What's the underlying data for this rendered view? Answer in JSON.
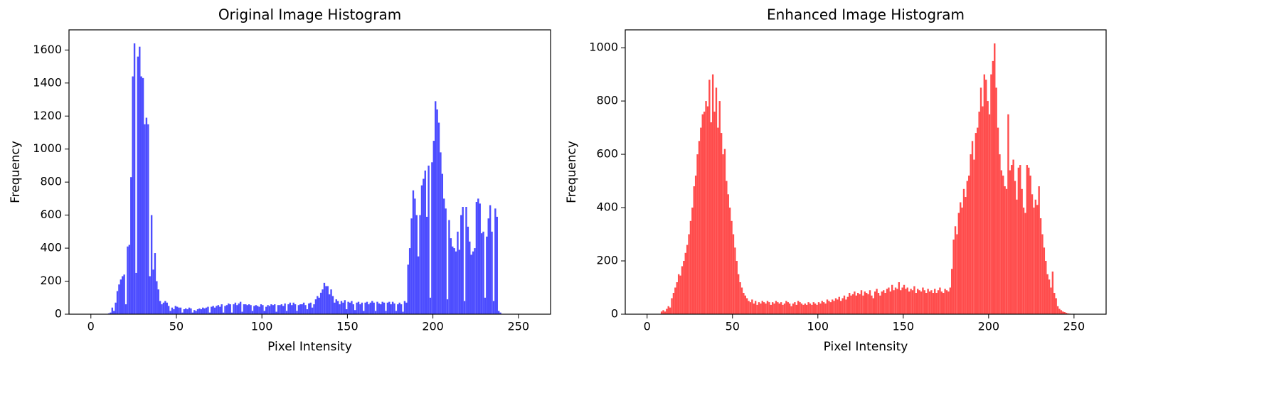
{
  "chart_data": [
    {
      "type": "histogram",
      "title": "Original Image Histogram",
      "x_label": "Pixel Intensity",
      "y_label": "Frequency",
      "color": "#4c4cff",
      "bins": [
        10,
        11,
        12,
        13,
        14,
        15,
        16,
        17,
        18,
        19,
        20,
        21,
        22,
        23,
        24,
        25,
        26,
        27,
        28,
        29,
        30,
        31,
        32,
        33,
        34,
        35,
        36,
        37,
        38,
        39,
        40,
        41,
        42,
        43,
        44,
        45,
        46,
        47,
        48,
        49,
        50,
        51,
        52,
        53,
        54,
        55,
        56,
        57,
        58,
        59,
        60,
        61,
        62,
        63,
        64,
        65,
        66,
        67,
        68,
        69,
        70,
        71,
        72,
        73,
        74,
        75,
        76,
        77,
        78,
        79,
        80,
        81,
        82,
        83,
        84,
        85,
        86,
        87,
        88,
        89,
        90,
        91,
        92,
        93,
        94,
        95,
        96,
        97,
        98,
        99,
        100,
        101,
        102,
        103,
        104,
        105,
        106,
        107,
        108,
        109,
        110,
        111,
        112,
        113,
        114,
        115,
        116,
        117,
        118,
        119,
        120,
        121,
        122,
        123,
        124,
        125,
        126,
        127,
        128,
        129,
        130,
        131,
        132,
        133,
        134,
        135,
        136,
        137,
        138,
        139,
        140,
        141,
        142,
        143,
        144,
        145,
        146,
        147,
        148,
        149,
        150,
        151,
        152,
        153,
        154,
        155,
        156,
        157,
        158,
        159,
        160,
        161,
        162,
        163,
        164,
        165,
        166,
        167,
        168,
        169,
        170,
        171,
        172,
        173,
        174,
        175,
        176,
        177,
        178,
        179,
        180,
        181,
        182,
        183,
        184,
        185,
        186,
        187,
        188,
        189,
        190,
        191,
        192,
        193,
        194,
        195,
        196,
        197,
        198,
        199,
        200,
        201,
        202,
        203,
        204,
        205,
        206,
        207,
        208,
        209,
        210,
        211,
        212,
        213,
        214,
        215,
        216,
        217,
        218,
        219,
        220,
        221,
        222,
        223,
        224,
        225,
        226,
        227,
        228,
        229,
        230,
        231,
        232,
        233,
        234,
        235,
        236,
        237,
        238,
        239,
        240
      ],
      "values": [
        5,
        10,
        40,
        20,
        70,
        140,
        180,
        210,
        230,
        240,
        60,
        410,
        420,
        830,
        1440,
        1640,
        250,
        1560,
        1620,
        1440,
        1430,
        1150,
        1190,
        1150,
        230,
        600,
        270,
        370,
        200,
        150,
        80,
        60,
        70,
        80,
        70,
        50,
        20,
        40,
        30,
        50,
        45,
        40,
        40,
        10,
        30,
        35,
        30,
        40,
        35,
        10,
        25,
        20,
        30,
        35,
        30,
        40,
        35,
        40,
        45,
        10,
        45,
        50,
        40,
        50,
        55,
        45,
        60,
        10,
        50,
        55,
        65,
        60,
        10,
        60,
        70,
        55,
        65,
        75,
        15,
        60,
        60,
        55,
        60,
        55,
        20,
        50,
        55,
        50,
        45,
        60,
        55,
        20,
        45,
        55,
        50,
        60,
        55,
        60,
        15,
        55,
        55,
        60,
        50,
        65,
        20,
        60,
        70,
        55,
        70,
        60,
        20,
        55,
        60,
        60,
        70,
        55,
        30,
        65,
        70,
        40,
        60,
        90,
        110,
        100,
        130,
        150,
        190,
        170,
        170,
        120,
        150,
        110,
        70,
        90,
        80,
        60,
        80,
        70,
        85,
        30,
        75,
        70,
        80,
        60,
        25,
        70,
        75,
        60,
        70,
        20,
        70,
        75,
        60,
        70,
        80,
        70,
        20,
        75,
        65,
        60,
        75,
        70,
        20,
        70,
        75,
        60,
        75,
        65,
        20,
        60,
        70,
        60,
        15,
        80,
        70,
        300,
        400,
        580,
        750,
        700,
        600,
        350,
        600,
        780,
        820,
        870,
        590,
        900,
        100,
        920,
        1050,
        1290,
        1240,
        1160,
        980,
        850,
        700,
        640,
        90,
        570,
        460,
        410,
        400,
        380,
        500,
        390,
        600,
        650,
        80,
        650,
        530,
        440,
        360,
        380,
        400,
        680,
        700,
        670,
        490,
        500,
        100,
        470,
        580,
        660,
        500,
        80,
        640,
        590,
        20,
        10
      ],
      "xlim": [
        -12.8,
        268.8
      ],
      "xticks": [
        0,
        50,
        100,
        150,
        200,
        250
      ],
      "ylim": [
        0,
        1722
      ],
      "yticks": [
        0,
        200,
        400,
        600,
        800,
        1000,
        1200,
        1400,
        1600
      ]
    },
    {
      "type": "histogram",
      "title": "Enhanced Image Histogram",
      "x_label": "Pixel Intensity",
      "y_label": "Frequency",
      "color": "#ff4c4c",
      "bins": [
        8,
        9,
        10,
        11,
        12,
        13,
        14,
        15,
        16,
        17,
        18,
        19,
        20,
        21,
        22,
        23,
        24,
        25,
        26,
        27,
        28,
        29,
        30,
        31,
        32,
        33,
        34,
        35,
        36,
        37,
        38,
        39,
        40,
        41,
        42,
        43,
        44,
        45,
        46,
        47,
        48,
        49,
        50,
        51,
        52,
        53,
        54,
        55,
        56,
        57,
        58,
        59,
        60,
        61,
        62,
        63,
        64,
        65,
        66,
        67,
        68,
        69,
        70,
        71,
        72,
        73,
        74,
        75,
        76,
        77,
        78,
        79,
        80,
        81,
        82,
        83,
        84,
        85,
        86,
        87,
        88,
        89,
        90,
        91,
        92,
        93,
        94,
        95,
        96,
        97,
        98,
        99,
        100,
        101,
        102,
        103,
        104,
        105,
        106,
        107,
        108,
        109,
        110,
        111,
        112,
        113,
        114,
        115,
        116,
        117,
        118,
        119,
        120,
        121,
        122,
        123,
        124,
        125,
        126,
        127,
        128,
        129,
        130,
        131,
        132,
        133,
        134,
        135,
        136,
        137,
        138,
        139,
        140,
        141,
        142,
        143,
        144,
        145,
        146,
        147,
        148,
        149,
        150,
        151,
        152,
        153,
        154,
        155,
        156,
        157,
        158,
        159,
        160,
        161,
        162,
        163,
        164,
        165,
        166,
        167,
        168,
        169,
        170,
        171,
        172,
        173,
        174,
        175,
        176,
        177,
        178,
        179,
        180,
        181,
        182,
        183,
        184,
        185,
        186,
        187,
        188,
        189,
        190,
        191,
        192,
        193,
        194,
        195,
        196,
        197,
        198,
        199,
        200,
        201,
        202,
        203,
        204,
        205,
        206,
        207,
        208,
        209,
        210,
        211,
        212,
        213,
        214,
        215,
        216,
        217,
        218,
        219,
        220,
        221,
        222,
        223,
        224,
        225,
        226,
        227,
        228,
        229,
        230,
        231,
        232,
        233,
        234,
        235,
        236,
        237,
        238,
        239,
        240,
        241,
        242,
        243,
        244,
        245,
        246,
        247,
        248
      ],
      "values": [
        10,
        15,
        10,
        20,
        30,
        25,
        60,
        80,
        100,
        120,
        150,
        145,
        180,
        200,
        230,
        260,
        300,
        350,
        400,
        480,
        520,
        600,
        650,
        700,
        750,
        760,
        800,
        780,
        880,
        720,
        900,
        760,
        850,
        700,
        800,
        680,
        600,
        620,
        500,
        450,
        400,
        350,
        300,
        250,
        200,
        150,
        120,
        100,
        80,
        70,
        60,
        50,
        45,
        55,
        40,
        50,
        35,
        45,
        40,
        50,
        45,
        40,
        50,
        45,
        35,
        45,
        40,
        50,
        45,
        40,
        45,
        35,
        40,
        50,
        45,
        40,
        30,
        40,
        45,
        35,
        50,
        45,
        40,
        35,
        40,
        35,
        45,
        40,
        35,
        45,
        40,
        35,
        45,
        40,
        50,
        45,
        40,
        55,
        50,
        45,
        55,
        50,
        60,
        55,
        65,
        50,
        60,
        70,
        55,
        65,
        80,
        70,
        75,
        85,
        70,
        80,
        75,
        90,
        70,
        85,
        80,
        75,
        90,
        70,
        60,
        85,
        95,
        80,
        70,
        85,
        90,
        80,
        95,
        100,
        85,
        110,
        90,
        100,
        95,
        120,
        90,
        100,
        110,
        95,
        100,
        85,
        95,
        90,
        105,
        80,
        95,
        90,
        85,
        100,
        90,
        80,
        95,
        85,
        90,
        80,
        95,
        80,
        90,
        100,
        85,
        80,
        95,
        90,
        85,
        100,
        170,
        280,
        330,
        300,
        380,
        420,
        400,
        470,
        440,
        500,
        520,
        600,
        650,
        580,
        680,
        700,
        760,
        850,
        780,
        900,
        880,
        800,
        750,
        900,
        950,
        1016,
        850,
        700,
        600,
        540,
        520,
        480,
        470,
        750,
        540,
        560,
        580,
        500,
        430,
        550,
        560,
        470,
        400,
        380,
        560,
        550,
        520,
        450,
        400,
        430,
        410,
        480,
        360,
        300,
        250,
        200,
        150,
        130,
        100,
        160,
        80,
        60,
        30,
        20,
        15,
        10,
        8,
        5,
        3,
        2
      ],
      "xlim": [
        -12.8,
        268.8
      ],
      "xticks": [
        0,
        50,
        100,
        150,
        200,
        250
      ],
      "ylim": [
        0,
        1067
      ],
      "yticks": [
        0,
        200,
        400,
        600,
        800,
        1000
      ]
    }
  ]
}
